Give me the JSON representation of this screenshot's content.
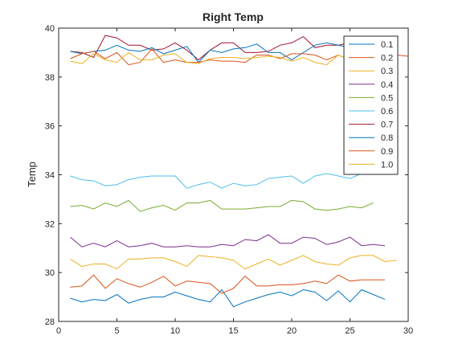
{
  "chart_data": {
    "type": "line",
    "title": "Right Temp",
    "xlabel": "",
    "ylabel": "Temp",
    "xlim": [
      0,
      30
    ],
    "ylim": [
      28,
      40
    ],
    "xticks": [
      0,
      5,
      10,
      15,
      20,
      25,
      30
    ],
    "yticks": [
      28,
      30,
      32,
      34,
      36,
      38,
      40
    ],
    "grid": false,
    "legend_position": "top-right",
    "series": [
      {
        "name": "0.1",
        "color": "#0072BD",
        "x": [
          1,
          2,
          3,
          4,
          5,
          6,
          7,
          8,
          9,
          10,
          11,
          12,
          13,
          14,
          15,
          16,
          17,
          18,
          19,
          20,
          21,
          22,
          23,
          24,
          25,
          26,
          27,
          28
        ],
        "values": [
          28.95,
          28.8,
          28.9,
          28.85,
          29.1,
          28.75,
          28.9,
          29.0,
          29.0,
          29.2,
          29.05,
          28.9,
          28.8,
          29.3,
          28.6,
          28.8,
          28.95,
          29.1,
          29.2,
          29.05,
          29.3,
          29.2,
          28.85,
          29.25,
          28.8,
          29.3,
          29.1,
          28.9
        ]
      },
      {
        "name": "0.2",
        "color": "#D95319",
        "x": [
          1,
          2,
          3,
          4,
          5,
          6,
          7,
          8,
          9,
          10,
          11,
          12,
          13,
          14,
          15,
          16,
          17,
          18,
          19,
          20,
          21,
          22,
          23,
          24,
          25,
          26,
          27,
          28
        ],
        "values": [
          29.4,
          29.45,
          29.9,
          29.35,
          29.75,
          29.55,
          29.4,
          29.6,
          29.85,
          29.45,
          29.65,
          29.6,
          29.55,
          29.15,
          29.35,
          29.85,
          29.45,
          29.45,
          29.5,
          29.5,
          29.55,
          29.65,
          29.55,
          29.9,
          29.65,
          29.7,
          29.7,
          29.7
        ]
      },
      {
        "name": "0.3",
        "color": "#EDB120",
        "x": [
          1,
          2,
          3,
          4,
          5,
          6,
          7,
          8,
          9,
          10,
          11,
          12,
          13,
          14,
          15,
          16,
          17,
          18,
          19,
          20,
          21,
          22,
          23,
          24,
          25,
          26,
          27,
          28,
          29
        ],
        "values": [
          30.55,
          30.25,
          30.35,
          30.35,
          30.15,
          30.55,
          30.55,
          30.6,
          30.6,
          30.45,
          30.25,
          30.7,
          30.65,
          30.6,
          30.5,
          30.15,
          30.35,
          30.55,
          30.3,
          30.5,
          30.7,
          30.45,
          30.35,
          30.3,
          30.6,
          30.7,
          30.7,
          30.45,
          30.5
        ]
      },
      {
        "name": "0.4",
        "color": "#7E2F8E",
        "x": [
          1,
          2,
          3,
          4,
          5,
          6,
          7,
          8,
          9,
          10,
          11,
          12,
          13,
          14,
          15,
          16,
          17,
          18,
          19,
          20,
          21,
          22,
          23,
          24,
          25,
          26,
          27,
          28
        ],
        "values": [
          31.45,
          31.05,
          31.2,
          31.05,
          31.3,
          31.05,
          31.1,
          31.2,
          31.05,
          31.05,
          31.1,
          31.05,
          31.05,
          31.15,
          31.1,
          31.35,
          31.3,
          31.55,
          31.2,
          31.2,
          31.45,
          31.4,
          31.15,
          31.25,
          31.45,
          31.1,
          31.15,
          31.1
        ]
      },
      {
        "name": "0.5",
        "color": "#77AC30",
        "x": [
          1,
          2,
          3,
          4,
          5,
          6,
          7,
          8,
          9,
          10,
          11,
          12,
          13,
          14,
          15,
          16,
          17,
          18,
          19,
          20,
          21,
          22,
          23,
          24,
          25,
          26,
          27
        ],
        "values": [
          32.7,
          32.75,
          32.6,
          32.85,
          32.7,
          32.95,
          32.5,
          32.65,
          32.75,
          32.55,
          32.85,
          32.85,
          32.95,
          32.6,
          32.6,
          32.6,
          32.65,
          32.7,
          32.7,
          32.95,
          32.9,
          32.6,
          32.55,
          32.6,
          32.7,
          32.65,
          32.85
        ]
      },
      {
        "name": "0.6",
        "color": "#4DBEEE",
        "x": [
          1,
          2,
          3,
          4,
          5,
          6,
          7,
          8,
          9,
          10,
          11,
          12,
          13,
          14,
          15,
          16,
          17,
          18,
          19,
          20,
          21,
          22,
          23,
          24,
          25,
          26
        ],
        "values": [
          33.95,
          33.8,
          33.75,
          33.55,
          33.6,
          33.8,
          33.9,
          33.95,
          33.95,
          33.95,
          33.45,
          33.6,
          33.7,
          33.45,
          33.65,
          33.55,
          33.6,
          33.85,
          33.9,
          33.95,
          33.65,
          33.95,
          34.05,
          33.95,
          33.85,
          34.05
        ]
      },
      {
        "name": "0.7",
        "color": "#A2142F",
        "x": [
          1,
          2,
          3,
          4,
          5,
          6,
          7,
          8,
          9,
          10,
          11,
          12,
          13,
          14,
          15,
          16,
          17,
          18,
          19,
          20,
          21,
          22,
          23,
          24,
          25,
          26,
          27
        ],
        "values": [
          39.05,
          39.0,
          38.8,
          39.7,
          39.6,
          39.3,
          39.3,
          39.1,
          39.15,
          39.4,
          39.1,
          38.7,
          39.1,
          39.4,
          39.4,
          39.0,
          39.0,
          39.05,
          39.3,
          39.4,
          39.65,
          39.2,
          39.3,
          39.3,
          39.4,
          39.3,
          39.0
        ]
      },
      {
        "name": "0.8",
        "color": "#0072BD",
        "x": [
          1,
          2,
          3,
          4,
          5,
          6,
          7,
          8,
          9,
          10,
          11,
          12,
          13,
          14,
          15,
          16,
          17,
          18,
          19,
          20,
          21,
          22,
          23,
          24,
          25
        ],
        "values": [
          39.05,
          38.95,
          39.05,
          39.1,
          39.3,
          39.1,
          39.05,
          39.2,
          38.95,
          39.1,
          39.25,
          38.6,
          39.1,
          39.0,
          39.15,
          39.2,
          39.35,
          39.0,
          39.0,
          38.7,
          39.0,
          39.3,
          39.4,
          39.3,
          39.2
        ]
      },
      {
        "name": "0.9",
        "color": "#D95319",
        "x": [
          1,
          2,
          3,
          4,
          5,
          6,
          7,
          8,
          9,
          10,
          11,
          12,
          13,
          14,
          15,
          16,
          17,
          18,
          19,
          20,
          21,
          22,
          23,
          24,
          25,
          26,
          27,
          28,
          29,
          30
        ],
        "values": [
          38.75,
          38.95,
          39.05,
          38.75,
          39.0,
          38.5,
          38.6,
          39.15,
          38.6,
          38.7,
          38.6,
          38.6,
          38.7,
          38.65,
          38.65,
          38.6,
          38.9,
          38.9,
          38.75,
          38.95,
          38.95,
          38.9,
          38.7,
          38.9,
          38.7,
          38.9,
          38.85,
          38.95,
          38.9,
          38.85
        ]
      },
      {
        "name": "1.0",
        "color": "#EDB120",
        "x": [
          1,
          2,
          3,
          4,
          5,
          6,
          7,
          8,
          9,
          10,
          11,
          12,
          13,
          14,
          15,
          16,
          17,
          18,
          19,
          20,
          21,
          22,
          23,
          24,
          25,
          26,
          27
        ],
        "values": [
          38.65,
          38.55,
          38.95,
          38.7,
          38.6,
          39.0,
          38.7,
          38.7,
          38.9,
          38.95,
          38.6,
          38.55,
          38.75,
          38.8,
          38.8,
          38.75,
          38.8,
          38.85,
          38.8,
          38.65,
          38.8,
          38.6,
          38.5,
          38.9,
          38.7,
          38.95,
          38.8
        ]
      }
    ]
  }
}
